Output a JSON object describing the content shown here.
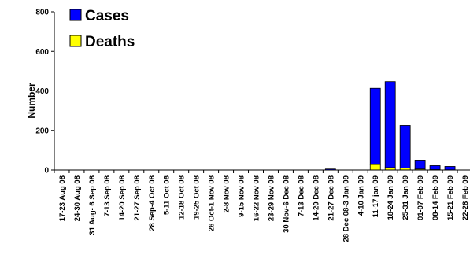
{
  "chart_data": {
    "type": "bar",
    "stacked": true,
    "title": "",
    "xlabel": "",
    "ylabel": "Number",
    "ylim": [
      0,
      800
    ],
    "yticks": [
      0,
      200,
      400,
      600,
      800
    ],
    "grid": false,
    "legend_position": "top-left",
    "categories": [
      "17-23 Aug 08",
      "24-30 Aug 08",
      "31 Aug- 6 Sep 08",
      "7-13 Sep 08",
      "14-20 Sep 08",
      "21-27 Sep 08",
      "28 Sep-4 Oct 08",
      "5-11 Oct 08",
      "12-18 Oct 08",
      "19-25 Oct 08",
      "26 Oct-1 Nov 08",
      "2-8 Nov 08",
      "9-15 Nov 08",
      "16-22 Nov 08",
      "23-29 Nov 08",
      "30 Nov-6 Dec 08",
      "7-13 Dec 08",
      "14-20 Dec 08",
      "21-27 Dec 08",
      "28 Dec 08-3 Jan 09",
      "4-10 Jan 09",
      "11-17 jan 09",
      "18-24 Jan 09",
      "25-31 Jan 09",
      "01-07 Feb 09",
      "08-14 Feb 09",
      "15-21 Feb 09",
      "22-28 Feb 09"
    ],
    "series": [
      {
        "name": "Cases",
        "color": "#0000ff",
        "values": [
          0,
          0,
          0,
          0,
          0,
          0,
          0,
          0,
          0,
          0,
          0,
          0,
          0,
          0,
          0,
          0,
          0,
          0,
          5,
          0,
          0,
          385,
          435,
          215,
          45,
          20,
          17,
          0
        ]
      },
      {
        "name": "Deaths",
        "color": "#ffff00",
        "values": [
          0,
          0,
          0,
          0,
          0,
          0,
          0,
          0,
          0,
          0,
          0,
          0,
          0,
          0,
          0,
          0,
          0,
          0,
          0,
          0,
          0,
          28,
          12,
          10,
          5,
          2,
          1,
          0
        ]
      }
    ]
  }
}
